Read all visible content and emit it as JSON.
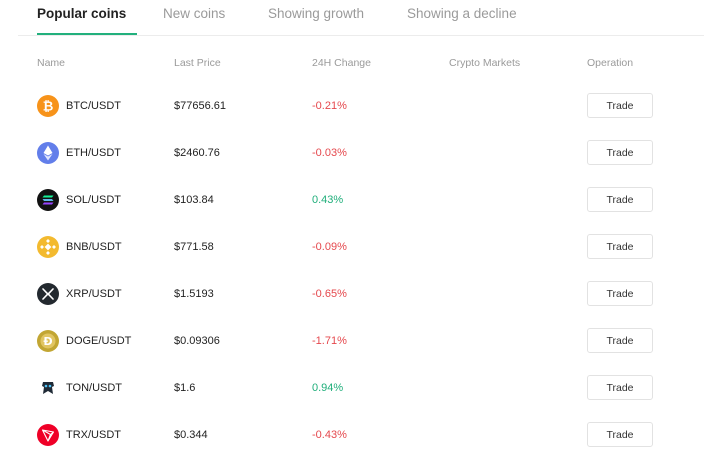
{
  "tabs": [
    "Popular coins",
    "New coins",
    "Showing growth",
    "Showing a decline"
  ],
  "active_tab": 0,
  "accent_color": "#22b07d",
  "negative_color": "#e5484d",
  "positive_color": "#1fae7a",
  "columns": {
    "name": "Name",
    "last_price": "Last Price",
    "change_24h": "24H Change",
    "crypto_markets": "Crypto Markets",
    "operation": "Operation"
  },
  "rows": [
    {
      "icon": "bitcoin-icon",
      "pair": "BTC/USDT",
      "price": "$77656.61",
      "change": "-0.21%",
      "direction": "down",
      "action": "Trade"
    },
    {
      "icon": "ethereum-icon",
      "pair": "ETH/USDT",
      "price": "$2460.76",
      "change": "-0.03%",
      "direction": "down",
      "action": "Trade"
    },
    {
      "icon": "solana-icon",
      "pair": "SOL/USDT",
      "price": "$103.84",
      "change": "0.43%",
      "direction": "up",
      "action": "Trade"
    },
    {
      "icon": "bnb-icon",
      "pair": "BNB/USDT",
      "price": "$771.58",
      "change": "-0.09%",
      "direction": "down",
      "action": "Trade"
    },
    {
      "icon": "xrp-icon",
      "pair": "XRP/USDT",
      "price": "$1.5193",
      "change": "-0.65%",
      "direction": "down",
      "action": "Trade"
    },
    {
      "icon": "dogecoin-icon",
      "pair": "DOGE/USDT",
      "price": "$0.09306",
      "change": "-1.71%",
      "direction": "down",
      "action": "Trade"
    },
    {
      "icon": "toncoin-icon",
      "pair": "TON/USDT",
      "price": "$1.6",
      "change": "0.94%",
      "direction": "up",
      "action": "Trade"
    },
    {
      "icon": "tron-icon",
      "pair": "TRX/USDT",
      "price": "$0.344",
      "change": "-0.43%",
      "direction": "down",
      "action": "Trade"
    }
  ]
}
